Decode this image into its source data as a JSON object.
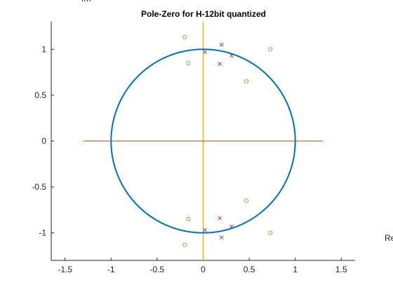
{
  "chart_data": {
    "type": "scatter",
    "title": "Pole-Zero for H-12bit quantized",
    "xlabel": "Re",
    "ylabel": "Im",
    "xlim": [
      -1.65,
      1.65
    ],
    "ylim": [
      -1.3,
      1.3
    ],
    "xticks": [
      -1.5,
      -1,
      -0.5,
      0,
      0.5,
      1,
      1.5
    ],
    "xtick_labels": [
      "-1.5",
      "-1",
      "-0.5",
      "0",
      "0.5",
      "1",
      "1.5"
    ],
    "yticks": [
      -1,
      -0.5,
      0,
      0.5,
      1
    ],
    "ytick_labels": [
      "-1",
      "-0.5",
      "0",
      "0.5",
      "1"
    ],
    "grid": false,
    "unit_circle": {
      "center": [
        0,
        0
      ],
      "radius": 1,
      "color": "#0072BD"
    },
    "real_axis_line": {
      "x": [
        -1.3,
        1.3
      ],
      "y": [
        0,
        0
      ],
      "color": "#D95319"
    },
    "imag_axis_line": {
      "x": [
        0,
        0
      ],
      "y": [
        -1.3,
        1.3
      ],
      "color": "#EDB120"
    },
    "series": [
      {
        "marker": "o",
        "color": "#77AC30",
        "points": [
          [
            -0.2,
            1.13
          ],
          [
            -0.16,
            0.85
          ],
          [
            0.47,
            0.65
          ],
          [
            0.73,
            1.0
          ],
          [
            -0.2,
            -1.13
          ],
          [
            -0.16,
            -0.85
          ],
          [
            0.47,
            -0.65
          ],
          [
            0.73,
            -1.0
          ]
        ]
      },
      {
        "marker": "x",
        "color": "#7E2F8E",
        "points": [
          [
            0.02,
            0.97
          ],
          [
            0.2,
            1.05
          ],
          [
            0.31,
            0.93
          ],
          [
            0.18,
            0.84
          ],
          [
            0.02,
            -0.97
          ],
          [
            0.2,
            -1.05
          ],
          [
            0.31,
            -0.93
          ],
          [
            0.18,
            -0.84
          ]
        ]
      }
    ]
  }
}
